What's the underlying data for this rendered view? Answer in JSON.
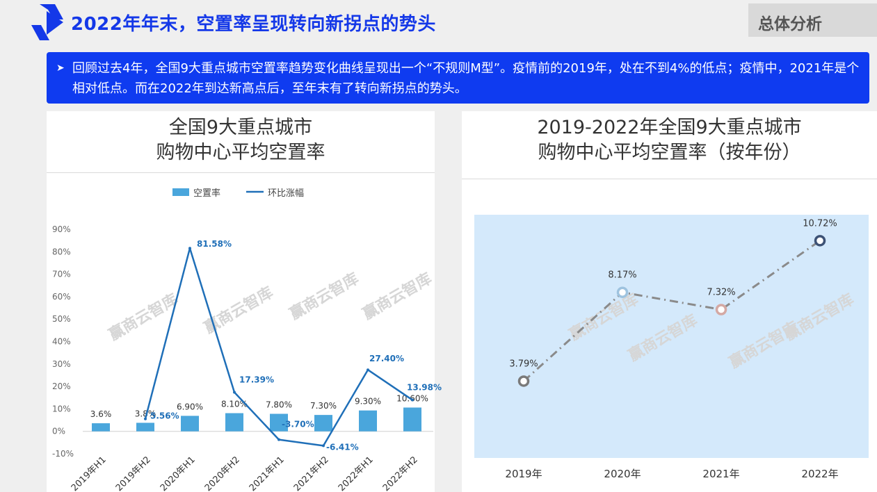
{
  "header": {
    "title": "2022年年末，空置率呈现转向新拐点的势头",
    "section_tag": "总体分析",
    "brand_color": "#1438e8"
  },
  "summary": {
    "bullet": "➤",
    "text": "回顾过去4年，全国9大重点城市空置率趋势变化曲线呈现出一个“不规则M型”。疫情前的2019年，处在不到4%的低点；疫情中，2021年是个相对低点。而在2022年到达新高点后，至年末有了转向新拐点的势头。"
  },
  "watermark": "赢商云智库",
  "chart_data": [
    {
      "type": "bar",
      "title": [
        "全国9大重点城市",
        "购物中心平均空置率"
      ],
      "categories": [
        "2019年H1",
        "2019年H2",
        "2020年H1",
        "2020年H2",
        "2021年H1",
        "2021年H2",
        "2022年H1",
        "2022年H2"
      ],
      "y_ticks": [
        "90%",
        "80%",
        "70%",
        "60%",
        "50%",
        "40%",
        "30%",
        "20%",
        "10%",
        "0%",
        "-10%"
      ],
      "ylim": [
        -10,
        90
      ],
      "legend_position": "top",
      "series": [
        {
          "name": "空置率",
          "kind": "bar",
          "color": "#4aa6dc",
          "values": [
            3.6,
            3.8,
            6.9,
            8.1,
            7.8,
            7.3,
            9.3,
            10.6
          ],
          "labels": [
            "3.6%",
            "3.8%",
            "6.90%",
            "8.10%",
            "7.80%",
            "7.30%",
            "9.30%",
            "10.60%"
          ]
        },
        {
          "name": "环比涨幅",
          "kind": "line",
          "color": "#1f6fb8",
          "values": [
            null,
            5.56,
            81.58,
            17.39,
            -3.7,
            -6.41,
            27.4,
            13.98
          ],
          "labels": [
            null,
            "5.56%",
            "81.58%",
            "17.39%",
            "-3.70%",
            "-6.41%",
            "27.40%",
            "13.98%"
          ]
        }
      ]
    },
    {
      "type": "line",
      "title": [
        "2019-2022年全国9大重点城市",
        "购物中心平均空置率（按年份）"
      ],
      "categories": [
        "2019年",
        "2020年",
        "2021年",
        "2022年"
      ],
      "values": [
        3.79,
        8.17,
        7.32,
        10.72
      ],
      "labels": [
        "3.79%",
        "8.17%",
        "7.32%",
        "10.72%"
      ],
      "ylim": [
        0,
        12
      ],
      "plot_background": "#d4e9fb",
      "line_color": "#8a8a8a",
      "marker_colors": [
        "#7a7a7a",
        "#9ec3df",
        "#d4a9a4",
        "#3d5275"
      ]
    }
  ]
}
